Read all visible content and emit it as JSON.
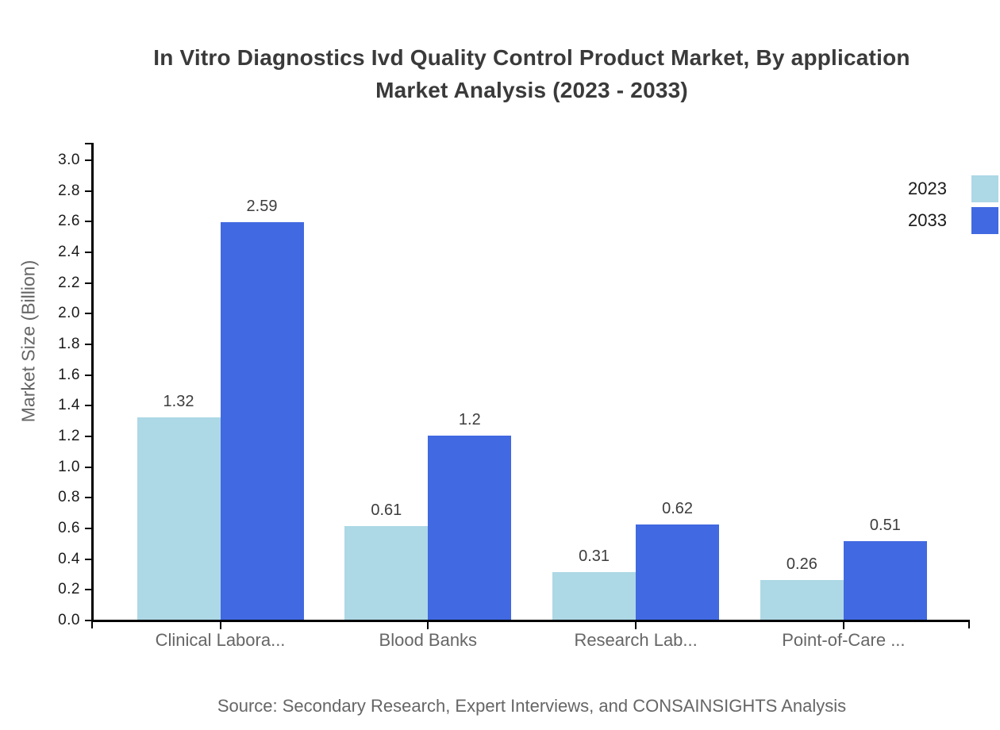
{
  "title": {
    "line1": "In Vitro Diagnostics Ivd Quality Control Product Market, By application",
    "line2": "Market Analysis (2023 - 2033)"
  },
  "chart_data": {
    "type": "bar",
    "title": "In Vitro Diagnostics Ivd Quality Control Product Market, By application Market Analysis (2023 - 2033)",
    "categories": [
      "Clinical Labora...",
      "Blood Banks",
      "Research Lab...",
      "Point-of-Care ..."
    ],
    "series": [
      {
        "name": "2023",
        "color": "#ADD8E6",
        "values": [
          1.32,
          0.61,
          0.31,
          0.26
        ],
        "labels": [
          "1.32",
          "0.61",
          "0.31",
          "0.26"
        ]
      },
      {
        "name": "2033",
        "color": "#4169E1",
        "values": [
          2.59,
          1.2,
          0.62,
          0.51
        ],
        "labels": [
          "2.59",
          "1.2",
          "0.62",
          "0.51"
        ]
      }
    ],
    "xlabel": "",
    "ylabel": "Market Size (Billion)",
    "ylim": [
      0.0,
      3.0
    ],
    "ytick_step": 0.2,
    "yticks": [
      "0.0",
      "0.2",
      "0.4",
      "0.6",
      "0.8",
      "1.0",
      "1.2",
      "1.4",
      "1.6",
      "1.8",
      "2.0",
      "2.2",
      "2.4",
      "2.6",
      "2.8",
      "3.0"
    ],
    "grid": false,
    "legend": {
      "position": "top-right",
      "entries": [
        "2023",
        "2033"
      ]
    },
    "axis_color": "#000000",
    "tick_label_color": "#1a1a1a",
    "value_label_color": "#3d3d3d",
    "category_label_color": "#666666",
    "title_color": "#3a3a3a"
  },
  "footer": {
    "source": "Source: Secondary Research, Expert Interviews, and CONSAINSIGHTS Analysis"
  }
}
